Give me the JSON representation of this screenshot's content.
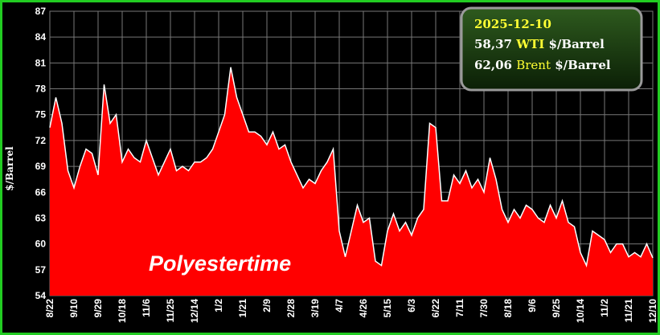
{
  "chart_data": {
    "type": "area",
    "y_label": "$/Barrel",
    "watermark": "Polyestertime",
    "info_box": {
      "date": "2025-12-10",
      "wti_value": "58,37",
      "wti_name": "WTI",
      "brent_value": "62,06",
      "brent_name": "Brent",
      "unit": "$/Barrel"
    },
    "color": "#ff0000",
    "line_color": "#ffffff",
    "grid": true,
    "ylim": [
      54,
      87
    ],
    "yticks": [
      54,
      57,
      60,
      63,
      66,
      69,
      72,
      75,
      78,
      81,
      84,
      87
    ],
    "categories": [
      "8/22",
      null,
      null,
      null,
      "9/10",
      null,
      null,
      null,
      "9/29",
      null,
      null,
      null,
      "10/18",
      null,
      null,
      null,
      "11/6",
      null,
      null,
      null,
      "11/25",
      null,
      null,
      null,
      "12/14",
      null,
      null,
      null,
      "1/2",
      null,
      null,
      null,
      "1/21",
      null,
      null,
      null,
      "2/9",
      null,
      null,
      null,
      "2/28",
      null,
      null,
      null,
      "3/19",
      null,
      null,
      null,
      "4/7",
      null,
      null,
      null,
      "4/26",
      null,
      null,
      null,
      "5/15",
      null,
      null,
      null,
      "6/3",
      null,
      null,
      null,
      "6/22",
      null,
      null,
      null,
      "7/11",
      null,
      null,
      null,
      "7/30",
      null,
      null,
      null,
      "8/18",
      null,
      null,
      null,
      "9/6",
      null,
      null,
      null,
      "9/25",
      null,
      null,
      null,
      "10/14",
      null,
      null,
      null,
      "11/2",
      null,
      null,
      null,
      "11/21",
      null,
      null,
      null,
      "12/10"
    ],
    "values": [
      73.5,
      77,
      74,
      68.5,
      66.5,
      69,
      71,
      70.5,
      68,
      78.5,
      74,
      75,
      69.5,
      71,
      70,
      69.5,
      72,
      70,
      68,
      69.5,
      71,
      68.5,
      69,
      68.5,
      69.5,
      69.5,
      70,
      71,
      73,
      75,
      80.5,
      77,
      75,
      73,
      73,
      72.5,
      71.5,
      73,
      71,
      71.5,
      69.5,
      68,
      66.5,
      67.5,
      67,
      68.5,
      69.5,
      71,
      61.5,
      58.5,
      61.5,
      64.5,
      62.5,
      63,
      58,
      57.5,
      61.5,
      63.5,
      61.5,
      62.5,
      61,
      63,
      64,
      74,
      73.5,
      65,
      65,
      68,
      67,
      68.5,
      66.5,
      67.5,
      66,
      70,
      67.5,
      64,
      62.5,
      64,
      63,
      64.5,
      64,
      63,
      62.5,
      64.5,
      63,
      65,
      62.5,
      62,
      59,
      57.5,
      61.5,
      61,
      60.5,
      59,
      60,
      60,
      58.5,
      59,
      58.5,
      60,
      58.37
    ]
  }
}
